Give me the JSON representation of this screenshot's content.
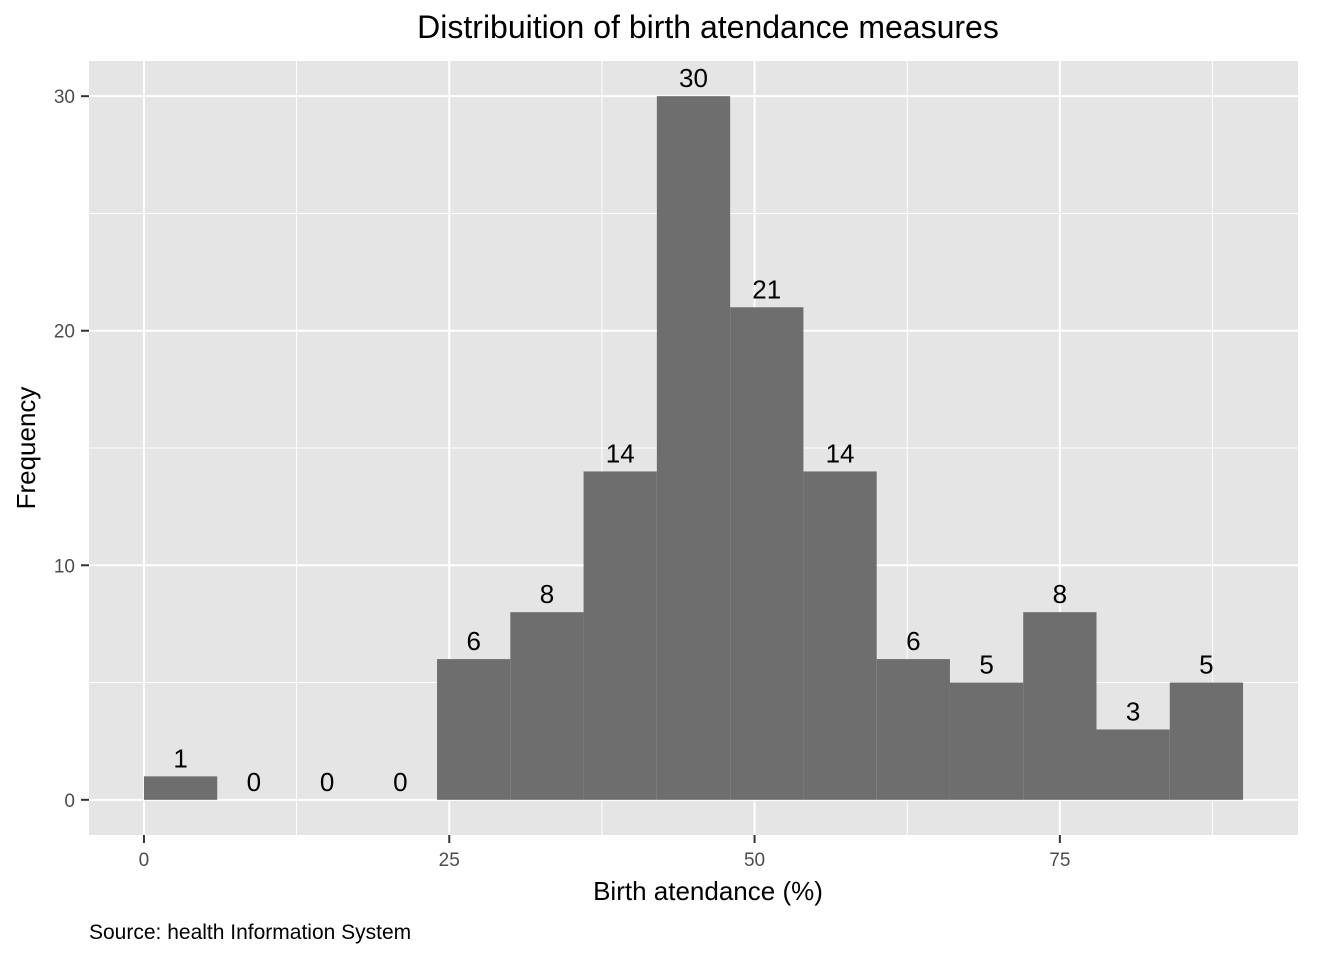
{
  "chart_data": {
    "type": "bar",
    "subtype": "histogram",
    "title": "Distribuition of birth atendance measures",
    "xlabel": "Birth atendance (%)",
    "ylabel": "Frequency",
    "caption": "Source: health Information System",
    "bin_width": 6,
    "bins": [
      {
        "start": 0,
        "end": 6,
        "count": 1
      },
      {
        "start": 6,
        "end": 12,
        "count": 0
      },
      {
        "start": 12,
        "end": 18,
        "count": 0
      },
      {
        "start": 18,
        "end": 24,
        "count": 0
      },
      {
        "start": 24,
        "end": 30,
        "count": 6
      },
      {
        "start": 30,
        "end": 36,
        "count": 8
      },
      {
        "start": 36,
        "end": 42,
        "count": 14
      },
      {
        "start": 42,
        "end": 48,
        "count": 30
      },
      {
        "start": 48,
        "end": 54,
        "count": 21
      },
      {
        "start": 54,
        "end": 60,
        "count": 14
      },
      {
        "start": 60,
        "end": 66,
        "count": 6
      },
      {
        "start": 66,
        "end": 72,
        "count": 5
      },
      {
        "start": 72,
        "end": 78,
        "count": 8
      },
      {
        "start": 78,
        "end": 84,
        "count": 3
      },
      {
        "start": 84,
        "end": 90,
        "count": 5
      }
    ],
    "xlim": [
      -4.5,
      94.5
    ],
    "ylim": [
      -1.5,
      31.5
    ],
    "x_ticks": [
      0,
      25,
      50,
      75
    ],
    "x_tick_labels": [
      "0",
      "25",
      "50",
      "75"
    ],
    "y_ticks": [
      0,
      10,
      20,
      30
    ],
    "y_tick_labels": [
      "0",
      "10",
      "20",
      "30"
    ],
    "grid": true,
    "colors": {
      "bar": "#6e6e6e",
      "panel": "#e5e5e5",
      "grid": "#ffffff"
    }
  }
}
